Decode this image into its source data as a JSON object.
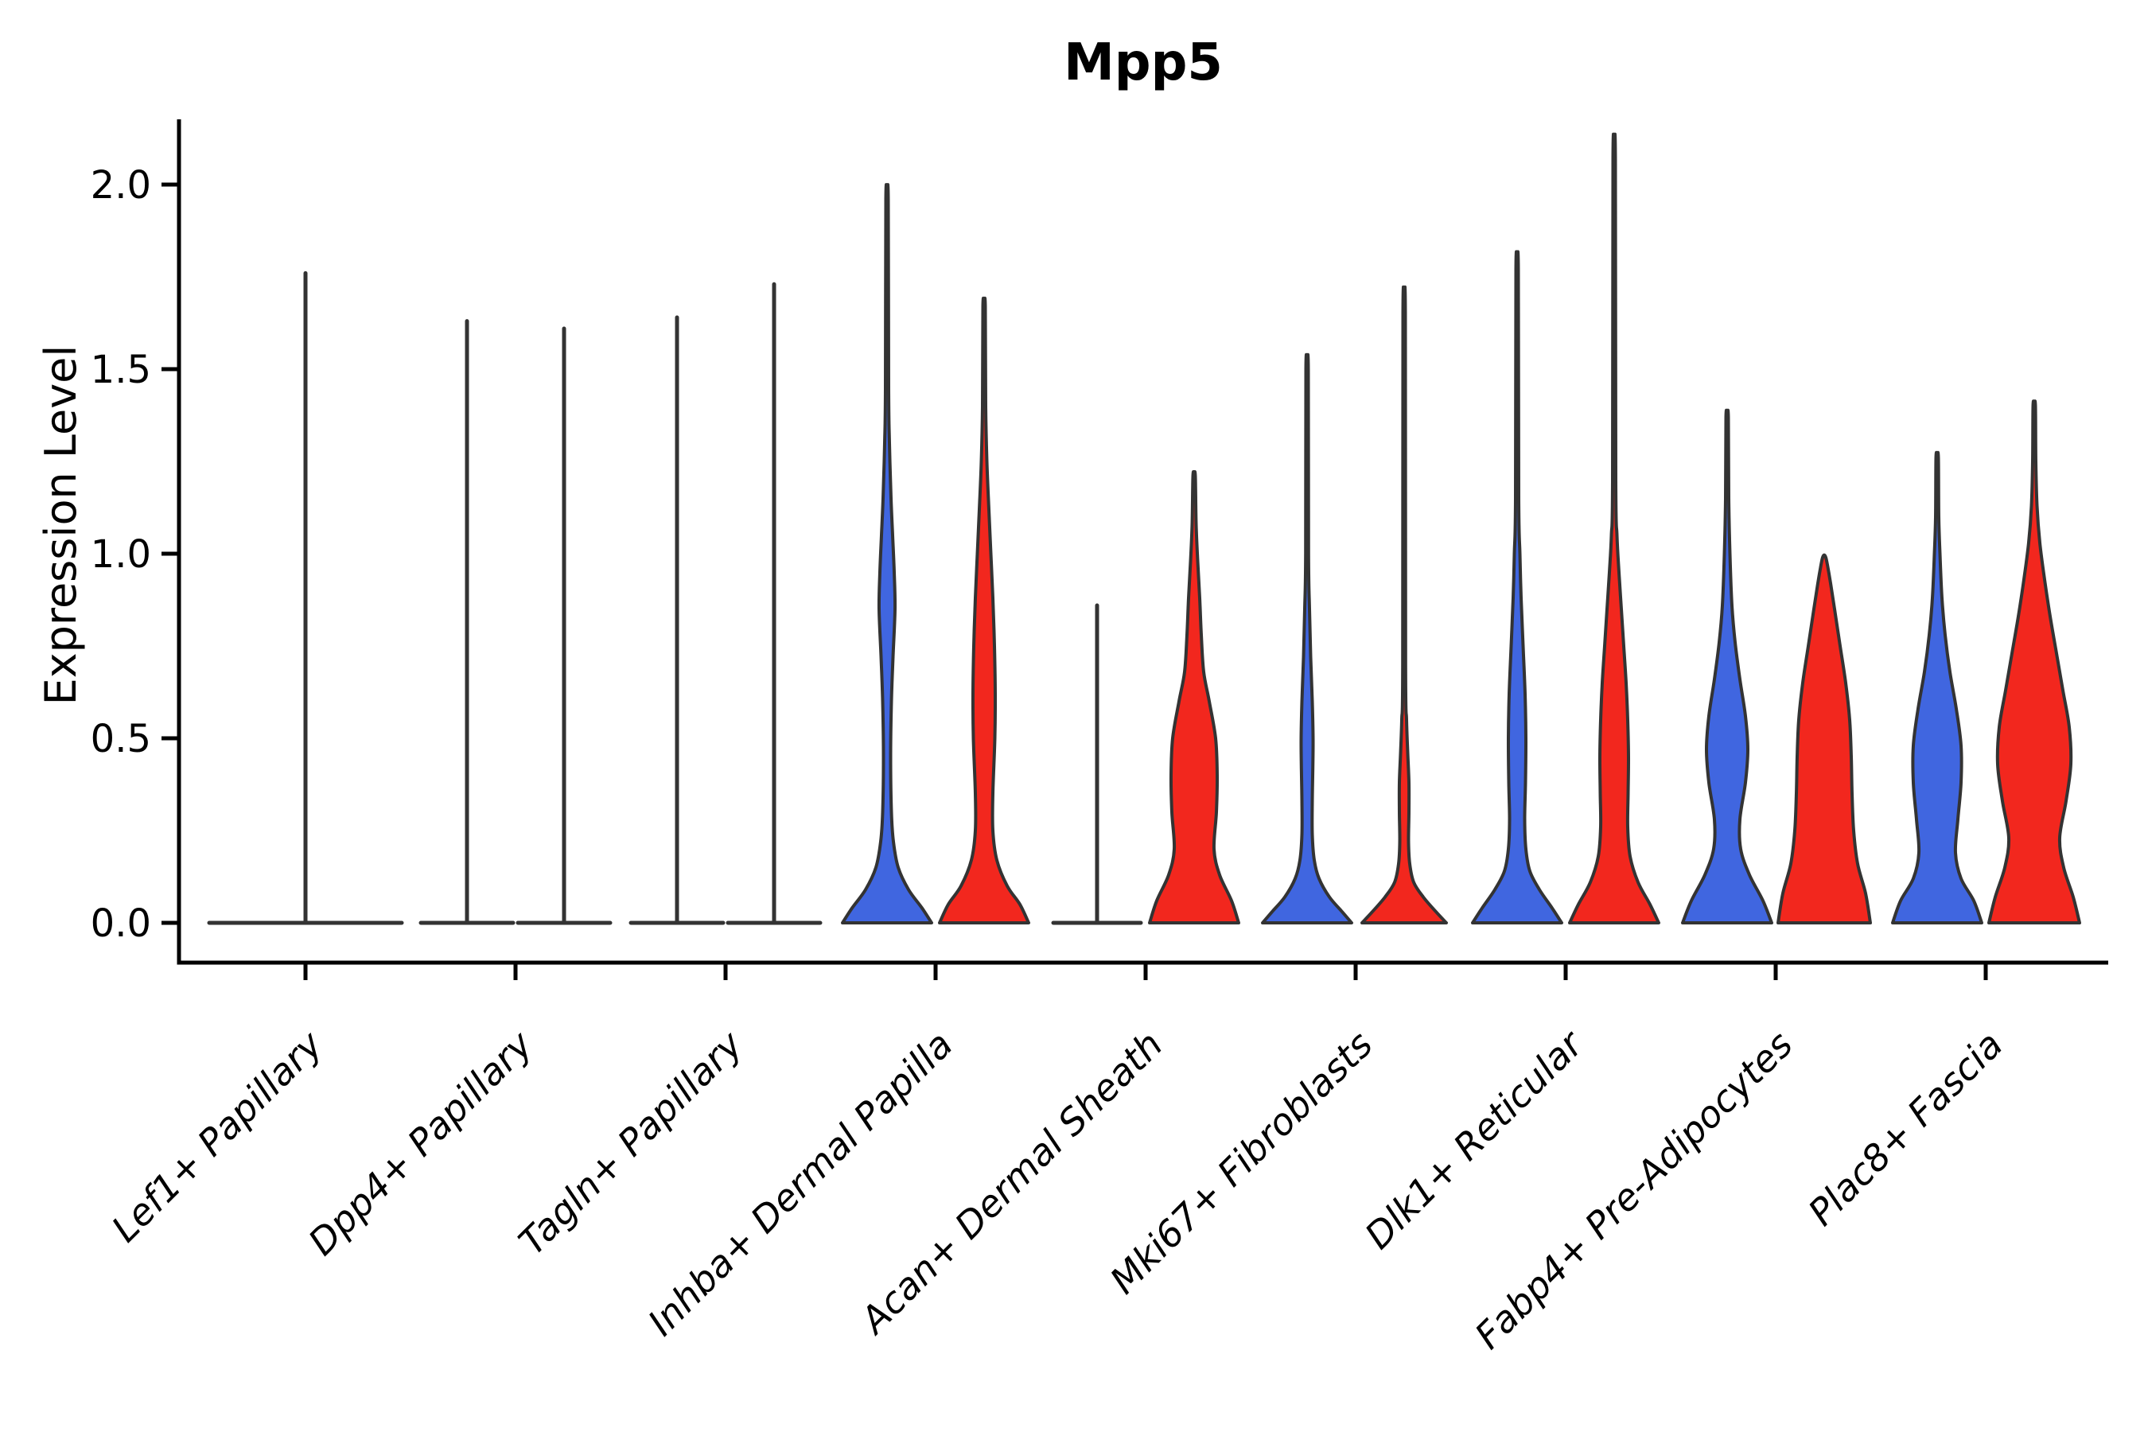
{
  "title": "Mpp5",
  "y_axis": {
    "label": "Expression Level",
    "tick_labels": [
      "0.0",
      "0.5",
      "1.0",
      "1.5",
      "2.0"
    ]
  },
  "x_axis": {
    "categories": [
      "Lef1+ Papillary",
      "Dpp4+ Papillary",
      "Tagln+ Papillary",
      "Inhba+ Dermal Papilla",
      "Acan+ Dermal Sheath",
      "Mki67+ Fibroblasts",
      "Dlk1+ Reticular",
      "Fabp4+ Pre-Adipocytes",
      "Plac8+ Fascia"
    ],
    "rotation_deg": 45
  },
  "colors": {
    "blue": "#4066E0",
    "red": "#F2271E",
    "outline": "#333333",
    "axis": "#000000",
    "background": "#ffffff"
  },
  "chart_data": {
    "type": "violin",
    "title": "Mpp5",
    "xlabel": "",
    "ylabel": "Expression Level",
    "ylim": [
      -0.06,
      2.15
    ],
    "yticks": [
      0,
      0.5,
      1,
      1.5,
      2
    ],
    "grid": "off",
    "legend_position": "none",
    "categories": [
      "Lef1+ Papillary",
      "Dpp4+ Papillary",
      "Tagln+ Papillary",
      "Inhba+ Dermal Papilla",
      "Acan+ Dermal Sheath",
      "Mki67+ Fibroblasts",
      "Dlk1+ Reticular",
      "Fabp4+ Pre-Adipocytes",
      "Plac8+ Fascia"
    ],
    "series": [
      {
        "name": "blue-split",
        "color": "#4066E0",
        "max_expression": [
          1.76,
          1.63,
          1.64,
          1.96,
          0.86,
          1.5,
          1.77,
          1.37,
          1.26
        ]
      },
      {
        "name": "red-split",
        "color": "#F2271E",
        "max_expression": [
          null,
          1.61,
          1.73,
          1.67,
          1.21,
          1.65,
          2.07,
          0.99,
          1.4
        ]
      }
    ],
    "violins": [
      {
        "group": 0,
        "split": "center",
        "series": "blue",
        "shape": "collapsed",
        "base_halfwidth": 121,
        "tip": 1.76
      },
      {
        "group": 1,
        "split": "left",
        "series": "blue",
        "shape": "collapsed",
        "base_halfwidth": 58,
        "tip": 1.63
      },
      {
        "group": 1,
        "split": "right",
        "series": "red",
        "shape": "collapsed",
        "base_halfwidth": 58,
        "tip": 1.61
      },
      {
        "group": 2,
        "split": "left",
        "series": "blue",
        "shape": "collapsed",
        "base_halfwidth": 58,
        "tip": 1.64
      },
      {
        "group": 2,
        "split": "right",
        "series": "red",
        "shape": "collapsed",
        "base_halfwidth": 58,
        "tip": 1.73
      },
      {
        "group": 3,
        "split": "left",
        "series": "blue",
        "shape": "density",
        "tip": 1.96,
        "profile": [
          [
            0,
            56
          ],
          [
            0.04,
            44
          ],
          [
            0.09,
            27
          ],
          [
            0.15,
            14
          ],
          [
            0.22,
            8
          ],
          [
            0.3,
            5.5
          ],
          [
            0.45,
            4.5
          ],
          [
            0.6,
            5.5
          ],
          [
            0.72,
            7.5
          ],
          [
            0.85,
            10
          ],
          [
            0.95,
            9
          ],
          [
            1.05,
            7
          ],
          [
            1.15,
            5
          ],
          [
            1.3,
            3
          ],
          [
            1.45,
            2
          ],
          [
            1.96,
            1.5
          ]
        ]
      },
      {
        "group": 3,
        "split": "right",
        "series": "red",
        "shape": "density",
        "tip": 1.67,
        "profile": [
          [
            0,
            56
          ],
          [
            0.05,
            45
          ],
          [
            0.1,
            29
          ],
          [
            0.17,
            16
          ],
          [
            0.25,
            11
          ],
          [
            0.35,
            11
          ],
          [
            0.5,
            13.5
          ],
          [
            0.62,
            14
          ],
          [
            0.75,
            13
          ],
          [
            0.88,
            11
          ],
          [
            1.0,
            8.5
          ],
          [
            1.12,
            6
          ],
          [
            1.25,
            3.5
          ],
          [
            1.4,
            2
          ],
          [
            1.67,
            1.5
          ]
        ]
      },
      {
        "group": 4,
        "split": "left",
        "series": "blue",
        "shape": "collapsed",
        "base_halfwidth": 55,
        "tip": 0.86
      },
      {
        "group": 4,
        "split": "right",
        "series": "red",
        "shape": "density",
        "tip": 1.21,
        "profile": [
          [
            0,
            56
          ],
          [
            0.06,
            47
          ],
          [
            0.13,
            32
          ],
          [
            0.2,
            25
          ],
          [
            0.3,
            28
          ],
          [
            0.4,
            29
          ],
          [
            0.5,
            27
          ],
          [
            0.6,
            19
          ],
          [
            0.68,
            12
          ],
          [
            0.78,
            9
          ],
          [
            0.88,
            7
          ],
          [
            0.98,
            4.5
          ],
          [
            1.08,
            2.5
          ],
          [
            1.21,
            1.5
          ]
        ]
      },
      {
        "group": 5,
        "split": "left",
        "series": "blue",
        "shape": "density",
        "tip": 1.5,
        "profile": [
          [
            0,
            56
          ],
          [
            0.03,
            44
          ],
          [
            0.07,
            28
          ],
          [
            0.12,
            15
          ],
          [
            0.17,
            9
          ],
          [
            0.24,
            6.5
          ],
          [
            0.33,
            6.5
          ],
          [
            0.42,
            7.2
          ],
          [
            0.5,
            7.5
          ],
          [
            0.6,
            6.5
          ],
          [
            0.72,
            4.5
          ],
          [
            0.85,
            3
          ],
          [
            1.0,
            1.8
          ],
          [
            1.5,
            1.5
          ]
        ]
      },
      {
        "group": 5,
        "split": "right",
        "series": "red",
        "shape": "density",
        "tip": 1.65,
        "profile": [
          [
            0,
            53
          ],
          [
            0.03,
            40
          ],
          [
            0.07,
            24
          ],
          [
            0.11,
            12
          ],
          [
            0.16,
            7
          ],
          [
            0.22,
            5.5
          ],
          [
            0.3,
            6
          ],
          [
            0.38,
            6
          ],
          [
            0.46,
            4.5
          ],
          [
            0.55,
            3
          ],
          [
            0.7,
            1.8
          ],
          [
            1.65,
            1.5
          ]
        ]
      },
      {
        "group": 6,
        "split": "left",
        "series": "blue",
        "shape": "density",
        "tip": 1.77,
        "profile": [
          [
            0,
            56
          ],
          [
            0.04,
            44
          ],
          [
            0.09,
            28
          ],
          [
            0.14,
            16
          ],
          [
            0.2,
            11
          ],
          [
            0.28,
            9.5
          ],
          [
            0.38,
            10.5
          ],
          [
            0.5,
            11
          ],
          [
            0.62,
            10
          ],
          [
            0.75,
            7.5
          ],
          [
            0.88,
            5
          ],
          [
            1.0,
            3.5
          ],
          [
            1.15,
            2
          ],
          [
            1.77,
            1.5
          ]
        ]
      },
      {
        "group": 6,
        "split": "right",
        "series": "red",
        "shape": "density",
        "tip": 2.07,
        "profile": [
          [
            0,
            56
          ],
          [
            0.05,
            45
          ],
          [
            0.11,
            30
          ],
          [
            0.18,
            20
          ],
          [
            0.26,
            17
          ],
          [
            0.35,
            17.5
          ],
          [
            0.45,
            18
          ],
          [
            0.55,
            17
          ],
          [
            0.65,
            15
          ],
          [
            0.75,
            12
          ],
          [
            0.85,
            9
          ],
          [
            0.95,
            6
          ],
          [
            1.05,
            3.5
          ],
          [
            1.2,
            2
          ],
          [
            2.07,
            1.5
          ]
        ]
      },
      {
        "group": 7,
        "split": "left",
        "series": "blue",
        "shape": "density",
        "tip": 1.37,
        "profile": [
          [
            0,
            56
          ],
          [
            0.06,
            45
          ],
          [
            0.13,
            28
          ],
          [
            0.2,
            17
          ],
          [
            0.28,
            16
          ],
          [
            0.38,
            23
          ],
          [
            0.47,
            26
          ],
          [
            0.56,
            23
          ],
          [
            0.66,
            16
          ],
          [
            0.76,
            10
          ],
          [
            0.86,
            6
          ],
          [
            1.0,
            3.5
          ],
          [
            1.15,
            2
          ],
          [
            1.37,
            1.5
          ]
        ]
      },
      {
        "group": 7,
        "split": "right",
        "series": "red",
        "shape": "density",
        "tip": 0.99,
        "profile": [
          [
            0,
            58
          ],
          [
            0.08,
            52
          ],
          [
            0.16,
            42
          ],
          [
            0.25,
            37
          ],
          [
            0.35,
            35
          ],
          [
            0.45,
            34
          ],
          [
            0.55,
            32
          ],
          [
            0.65,
            27
          ],
          [
            0.75,
            20
          ],
          [
            0.85,
            13
          ],
          [
            0.92,
            8
          ],
          [
            0.97,
            4
          ],
          [
            0.99,
            2
          ]
        ]
      },
      {
        "group": 8,
        "split": "left",
        "series": "blue",
        "shape": "density",
        "tip": 1.26,
        "profile": [
          [
            0,
            56
          ],
          [
            0.06,
            46
          ],
          [
            0.12,
            30
          ],
          [
            0.19,
            23
          ],
          [
            0.28,
            26
          ],
          [
            0.38,
            30
          ],
          [
            0.48,
            30
          ],
          [
            0.58,
            24
          ],
          [
            0.68,
            16
          ],
          [
            0.78,
            10
          ],
          [
            0.88,
            6
          ],
          [
            1.0,
            3.5
          ],
          [
            1.1,
            2
          ],
          [
            1.26,
            1.5
          ]
        ]
      },
      {
        "group": 8,
        "split": "right",
        "series": "red",
        "shape": "density",
        "tip": 1.4,
        "profile": [
          [
            0,
            57
          ],
          [
            0.07,
            49
          ],
          [
            0.15,
            37
          ],
          [
            0.23,
            32
          ],
          [
            0.33,
            40
          ],
          [
            0.43,
            46
          ],
          [
            0.53,
            44
          ],
          [
            0.63,
            36
          ],
          [
            0.73,
            28
          ],
          [
            0.83,
            20
          ],
          [
            0.93,
            13
          ],
          [
            1.03,
            7
          ],
          [
            1.13,
            3.5
          ],
          [
            1.25,
            2
          ],
          [
            1.4,
            1.5
          ]
        ]
      }
    ]
  }
}
